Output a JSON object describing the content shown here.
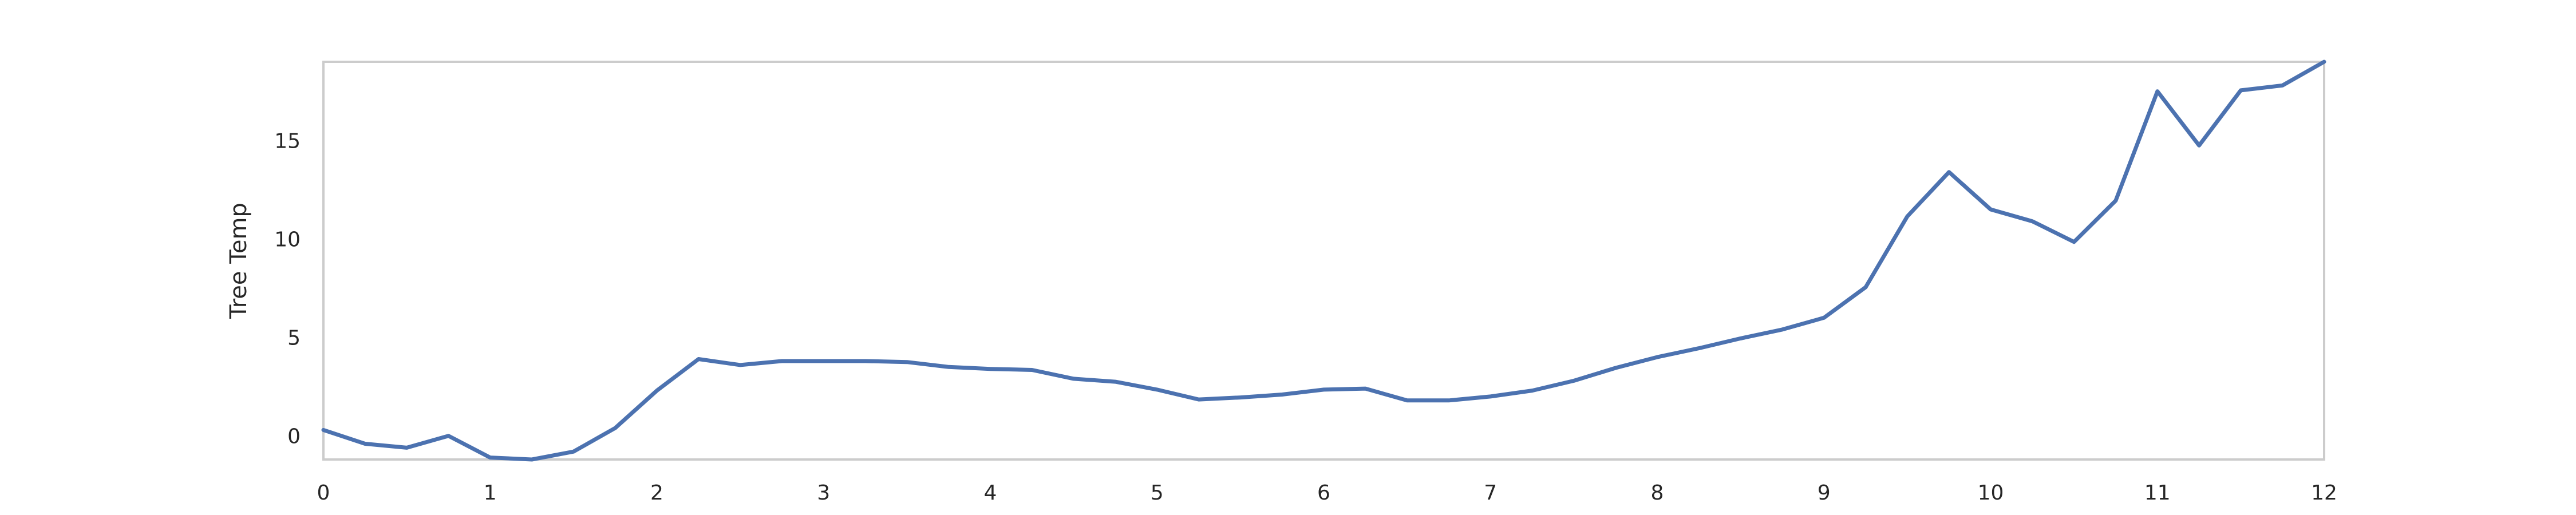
{
  "chart_data": {
    "type": "line",
    "title": "",
    "xlabel": "",
    "ylabel": "Tree Temp",
    "xlim": [
      0,
      12
    ],
    "ylim": [
      -1.2,
      19
    ],
    "grid": false,
    "legend": "none",
    "x_ticks": [
      0,
      1,
      2,
      3,
      4,
      5,
      6,
      7,
      8,
      9,
      10,
      11,
      12
    ],
    "y_ticks": [
      0,
      5,
      10,
      15
    ],
    "series": [
      {
        "color": "#4c72b0",
        "x": [
          0,
          0.25,
          0.5,
          0.75,
          1,
          1.25,
          1.5,
          1.75,
          2,
          2.25,
          2.5,
          2.75,
          3,
          3.25,
          3.5,
          3.75,
          4,
          4.25,
          4.5,
          4.75,
          5,
          5.25,
          5.5,
          5.75,
          6,
          6.25,
          6.5,
          6.75,
          7,
          7.25,
          7.5,
          7.75,
          8,
          8.25,
          8.5,
          8.75,
          9,
          9.25,
          9.5,
          9.75,
          10,
          10.25,
          10.5,
          10.75,
          11,
          11.25,
          11.5,
          11.75,
          12
        ],
        "values": [
          0.3,
          -0.4,
          -0.6,
          0.0,
          -1.1,
          -1.2,
          -0.8,
          0.4,
          2.3,
          3.9,
          3.6,
          3.8,
          3.8,
          3.8,
          3.75,
          3.5,
          3.4,
          3.35,
          2.9,
          2.75,
          2.35,
          1.85,
          1.95,
          2.1,
          2.35,
          2.4,
          1.8,
          1.8,
          2.0,
          2.3,
          2.8,
          3.45,
          4.0,
          4.45,
          4.95,
          5.4,
          6.0,
          7.55,
          11.15,
          13.4,
          11.5,
          10.9,
          9.85,
          11.95,
          17.5,
          14.75,
          17.55,
          17.8,
          19.0
        ]
      }
    ]
  }
}
